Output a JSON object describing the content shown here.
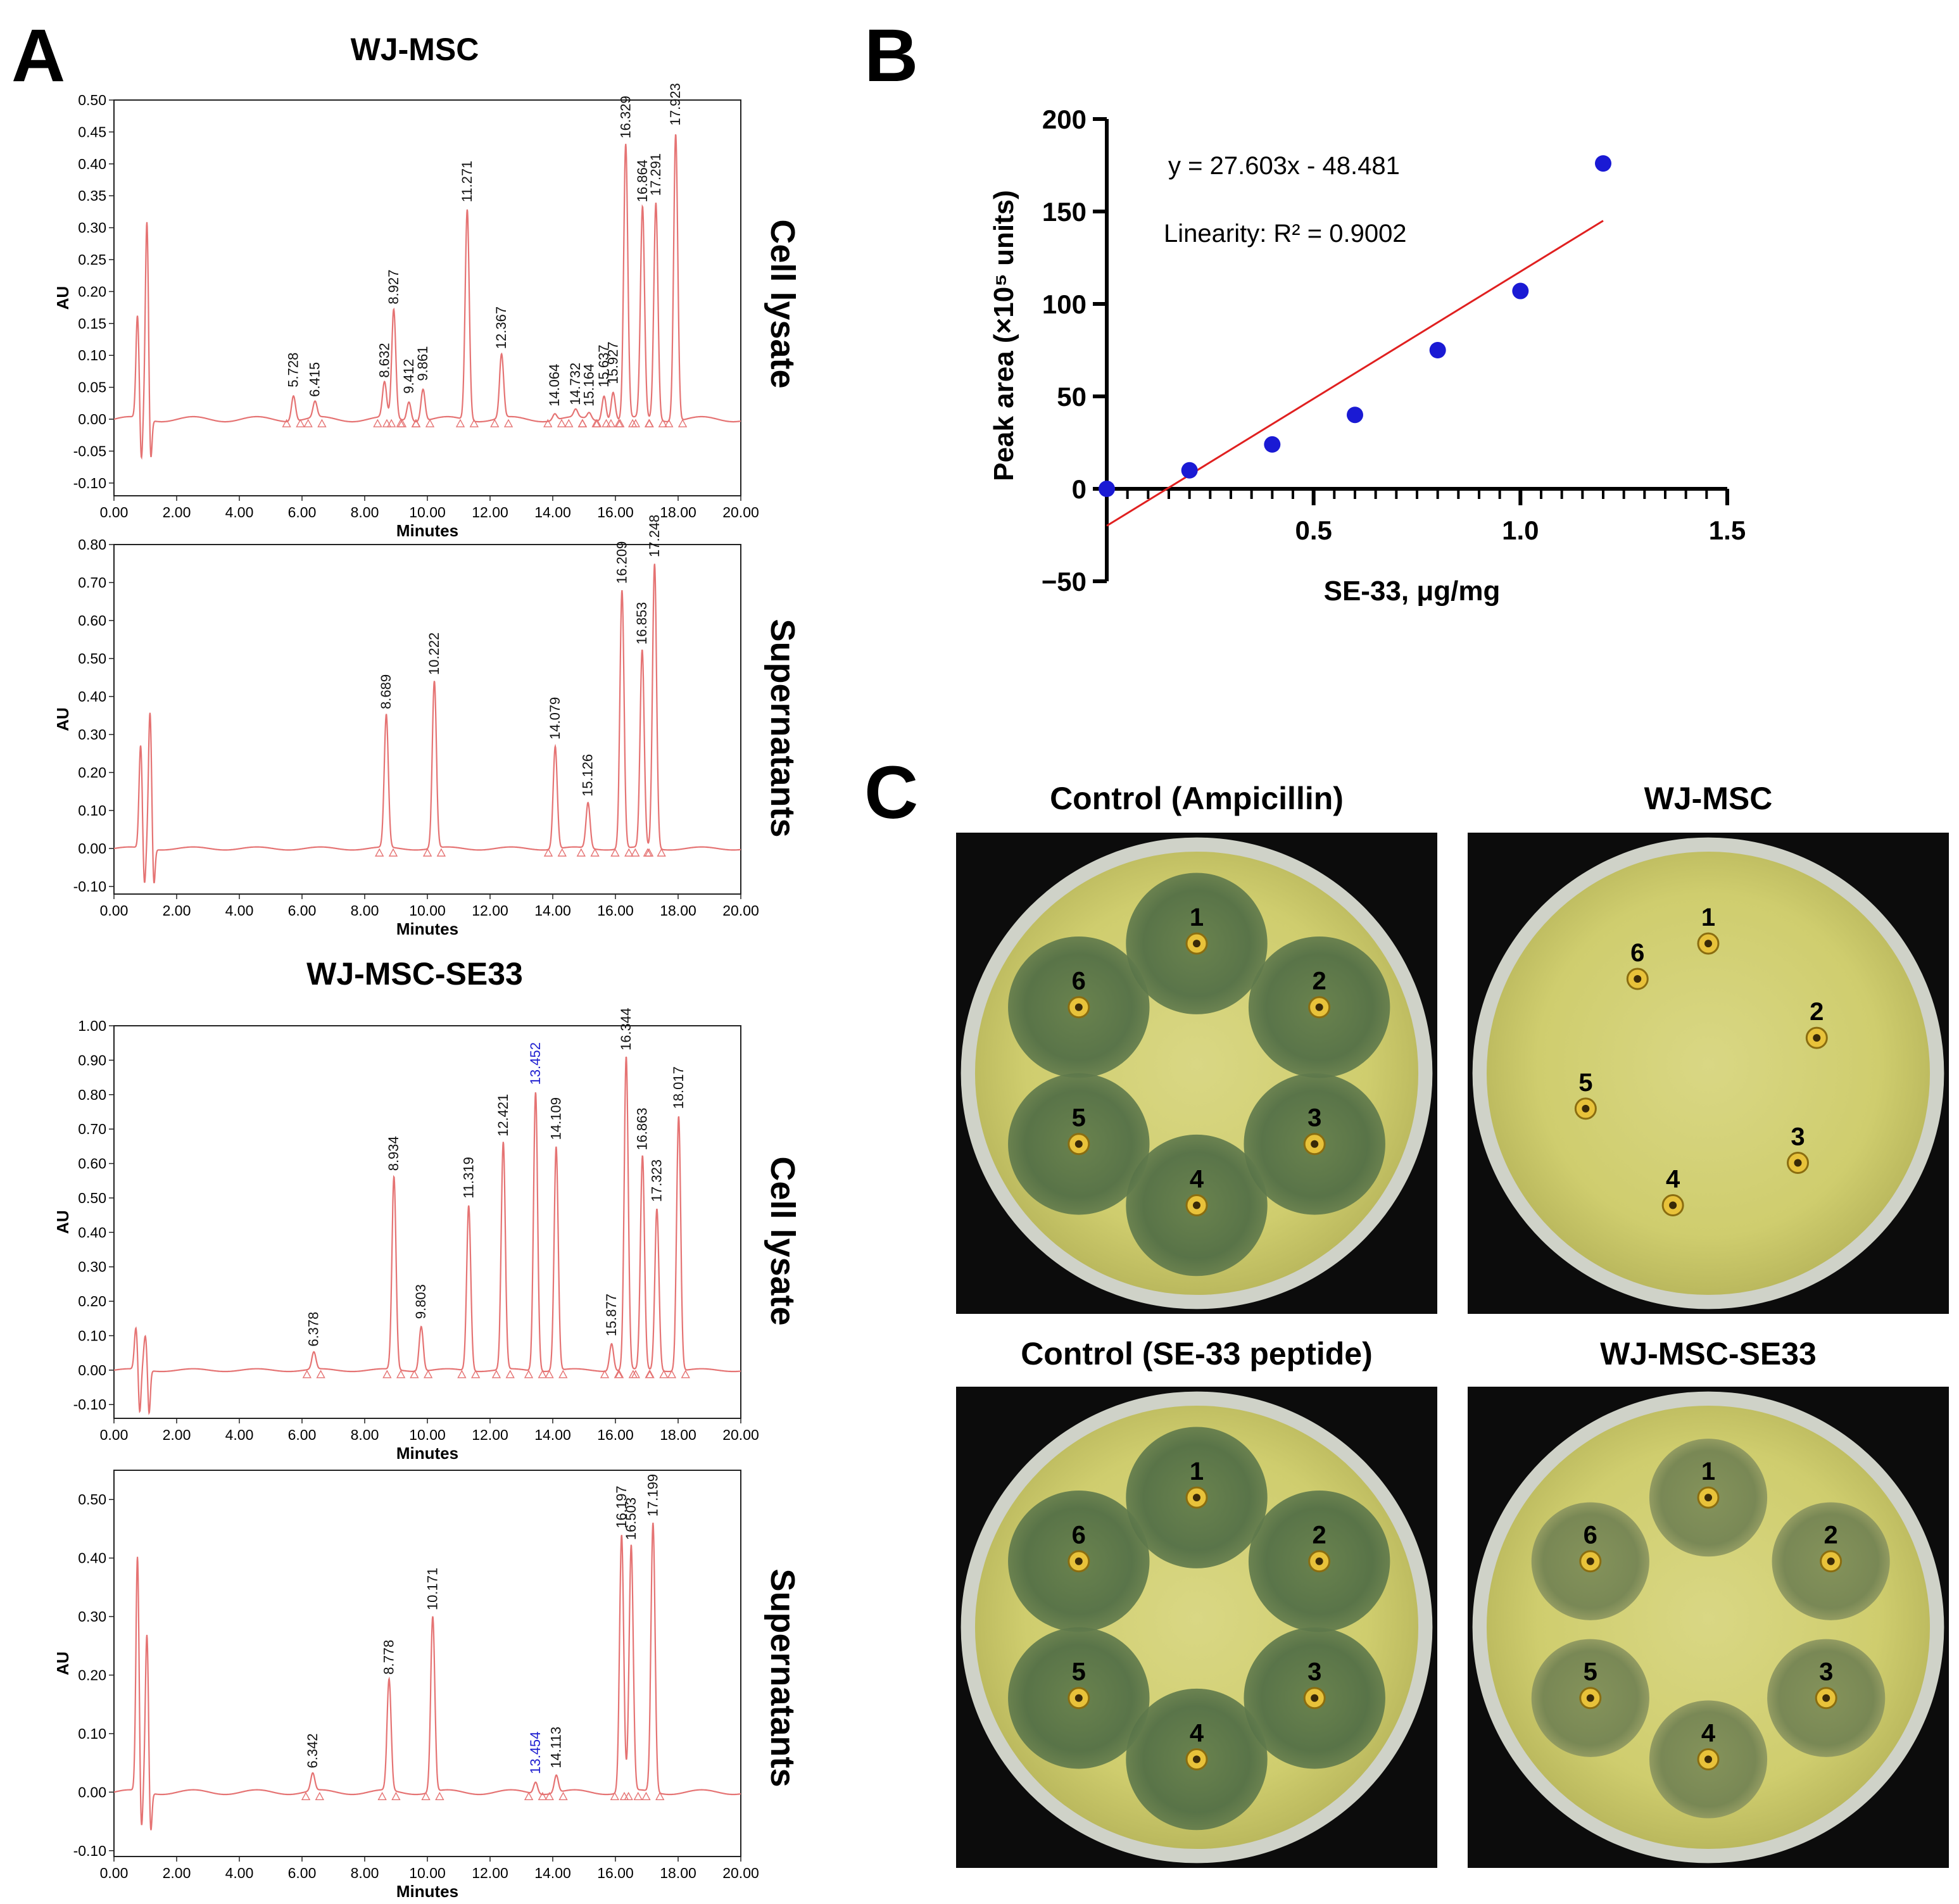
{
  "panels": {
    "a": "A",
    "b": "B",
    "c": "C"
  },
  "panel_a": {
    "group_titles": [
      "WJ-MSC",
      "WJ-MSC-SE33"
    ],
    "sample_labels": [
      "Cell lysate",
      "Supernatants",
      "Cell lysate",
      "Supernatants"
    ],
    "x_axis_label": "Minutes",
    "y_axis_label": "AU",
    "x_tick_labels": [
      "0.00",
      "2.00",
      "4.00",
      "6.00",
      "8.00",
      "10.00",
      "12.00",
      "14.00",
      "16.00",
      "18.00",
      "20.00"
    ],
    "line_color": "#e57373",
    "highlight_color": "#1f1fd0"
  },
  "chart_data": [
    {
      "type": "line",
      "group": "WJ-MSC",
      "sample": "Cell lysate",
      "xlabel": "Minutes",
      "ylabel": "AU",
      "xlim": [
        0,
        20
      ],
      "ylim": [
        -0.12,
        0.5
      ],
      "yticks": [
        "-0.10",
        "-0.05",
        "0.00",
        "0.05",
        "0.10",
        "0.15",
        "0.20",
        "0.25",
        "0.30",
        "0.35",
        "0.40",
        "0.45",
        "0.50"
      ],
      "solvent_peaks": [
        {
          "rt": 0.75,
          "h": 0.16
        },
        {
          "rt": 1.05,
          "h": 0.31
        }
      ],
      "peaks": [
        {
          "rt": "5.728",
          "h": 0.04
        },
        {
          "rt": "6.415",
          "h": 0.025
        },
        {
          "rt": "8.632",
          "h": 0.055
        },
        {
          "rt": "8.927",
          "h": 0.17
        },
        {
          "rt": "9.412",
          "h": 0.03
        },
        {
          "rt": "9.861",
          "h": 0.05
        },
        {
          "rt": "11.271",
          "h": 0.33
        },
        {
          "rt": "12.367",
          "h": 0.1
        },
        {
          "rt": "14.064",
          "h": 0.01
        },
        {
          "rt": "14.732",
          "h": 0.012
        },
        {
          "rt": "15.164",
          "h": 0.01
        },
        {
          "rt": "15.637",
          "h": 0.04
        },
        {
          "rt": "15.927",
          "h": 0.045
        },
        {
          "rt": "16.329",
          "h": 0.43
        },
        {
          "rt": "16.864",
          "h": 0.33
        },
        {
          "rt": "17.291",
          "h": 0.34
        },
        {
          "rt": "17.923",
          "h": 0.45
        }
      ]
    },
    {
      "type": "line",
      "group": "WJ-MSC",
      "sample": "Supernatants",
      "xlabel": "Minutes",
      "ylabel": "AU",
      "xlim": [
        0,
        20
      ],
      "ylim": [
        -0.12,
        0.8
      ],
      "yticks": [
        "-0.10",
        "0.00",
        "0.10",
        "0.20",
        "0.30",
        "0.40",
        "0.50",
        "0.60",
        "0.70",
        "0.80"
      ],
      "solvent_peaks": [
        {
          "rt": 0.85,
          "h": 0.27
        },
        {
          "rt": 1.15,
          "h": 0.36
        }
      ],
      "peaks": [
        {
          "rt": "8.689",
          "h": 0.35
        },
        {
          "rt": "10.222",
          "h": 0.44
        },
        {
          "rt": "14.079",
          "h": 0.27
        },
        {
          "rt": "15.126",
          "h": 0.12
        },
        {
          "rt": "16.209",
          "h": 0.68
        },
        {
          "rt": "16.853",
          "h": 0.52
        },
        {
          "rt": "17.248",
          "h": 0.75
        }
      ]
    },
    {
      "type": "line",
      "group": "WJ-MSC-SE33",
      "sample": "Cell lysate",
      "xlabel": "Minutes",
      "ylabel": "AU",
      "xlim": [
        0,
        20
      ],
      "ylim": [
        -0.14,
        1.0
      ],
      "yticks": [
        "-0.10",
        "0.00",
        "0.10",
        "0.20",
        "0.30",
        "0.40",
        "0.50",
        "0.60",
        "0.70",
        "0.80",
        "0.90",
        "1.00"
      ],
      "solvent_peaks": [
        {
          "rt": 0.7,
          "h": 0.12
        },
        {
          "rt": 1.0,
          "h": 0.1
        }
      ],
      "peaks": [
        {
          "rt": "6.378",
          "h": 0.05
        },
        {
          "rt": "8.934",
          "h": 0.56
        },
        {
          "rt": "9.803",
          "h": 0.13
        },
        {
          "rt": "11.319",
          "h": 0.48
        },
        {
          "rt": "12.421",
          "h": 0.66
        },
        {
          "rt": "13.452",
          "h": 0.81,
          "highlight": true
        },
        {
          "rt": "14.109",
          "h": 0.65
        },
        {
          "rt": "15.877",
          "h": 0.08
        },
        {
          "rt": "16.344",
          "h": 0.91
        },
        {
          "rt": "16.863",
          "h": 0.62
        },
        {
          "rt": "17.323",
          "h": 0.47
        },
        {
          "rt": "18.017",
          "h": 0.74
        }
      ]
    },
    {
      "type": "line",
      "group": "WJ-MSC-SE33",
      "sample": "Supernatants",
      "xlabel": "Minutes",
      "ylabel": "AU",
      "xlim": [
        0,
        20
      ],
      "ylim": [
        -0.11,
        0.55
      ],
      "yticks": [
        "-0.10",
        "0.00",
        "0.10",
        "0.20",
        "0.30",
        "0.40",
        "0.50"
      ],
      "solvent_peaks": [
        {
          "rt": 0.75,
          "h": 0.4
        },
        {
          "rt": 1.05,
          "h": 0.27
        }
      ],
      "peaks": [
        {
          "rt": "6.342",
          "h": 0.03
        },
        {
          "rt": "8.778",
          "h": 0.19
        },
        {
          "rt": "10.171",
          "h": 0.3
        },
        {
          "rt": "13.454",
          "h": 0.02,
          "highlight": true
        },
        {
          "rt": "14.113",
          "h": 0.03
        },
        {
          "rt": "16.197",
          "h": 0.44
        },
        {
          "rt": "16.503",
          "h": 0.42
        },
        {
          "rt": "17.199",
          "h": 0.46
        }
      ]
    },
    {
      "type": "scatter",
      "xlabel": "SE-33, μg/mg",
      "ylabel": "Peak area (×10⁵ units)",
      "xlim": [
        0,
        1.5
      ],
      "ylim": [
        -50,
        200
      ],
      "x_ticks": [
        "0.5",
        "1.0",
        "1.5"
      ],
      "y_ticks": [
        "−50",
        "0",
        "50",
        "100",
        "150",
        "200"
      ],
      "x": [
        0,
        0.2,
        0.4,
        0.6,
        0.8,
        1.0,
        1.2
      ],
      "y": [
        0,
        10,
        24,
        40,
        75,
        107,
        176
      ],
      "trendline": {
        "slope": 27.603,
        "intercept": -48.481
      },
      "equation": "y = 27.603x - 48.481",
      "linearity": "Linearity: R² = 0.9002",
      "point_color": "#1a1ad4",
      "line_color": "#e02020"
    }
  ],
  "panel_c": {
    "plates": [
      {
        "title": "Control (Ampicillin)",
        "wells": [
          "1",
          "2",
          "3",
          "4",
          "5",
          "6"
        ],
        "zones": "large"
      },
      {
        "title": "WJ-MSC",
        "wells": [
          "1",
          "2",
          "3",
          "4",
          "5",
          "6"
        ],
        "zones": "none"
      },
      {
        "title": "Control (SE-33 peptide)",
        "wells": [
          "1",
          "2",
          "3",
          "4",
          "5",
          "6"
        ],
        "zones": "large"
      },
      {
        "title": "WJ-MSC-SE33",
        "wells": [
          "1",
          "2",
          "3",
          "4",
          "5",
          "6"
        ],
        "zones": "medium"
      }
    ]
  }
}
